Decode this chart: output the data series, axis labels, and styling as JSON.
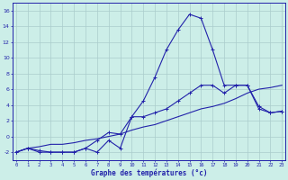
{
  "background_color": "#cceee8",
  "grid_color": "#aacccc",
  "line_color": "#2222aa",
  "x_values": [
    0,
    1,
    2,
    3,
    4,
    5,
    6,
    7,
    8,
    9,
    10,
    11,
    12,
    13,
    14,
    15,
    16,
    17,
    18,
    19,
    20,
    21,
    22,
    23
  ],
  "line_peak": [
    -2,
    -1.5,
    -2,
    -2,
    -2,
    -2,
    -1.5,
    -2,
    -0.5,
    -1.5,
    2.5,
    4.5,
    7.5,
    11.0,
    13.5,
    15.5,
    15.0,
    11.0,
    6.5,
    6.5,
    6.5,
    3.8,
    3.0,
    3.2
  ],
  "line_mid": [
    -2,
    -1.5,
    -1.8,
    -2,
    -2,
    -2,
    -1.5,
    -0.5,
    0.5,
    0.3,
    2.5,
    2.5,
    3.0,
    3.5,
    4.5,
    5.5,
    6.5,
    6.5,
    5.5,
    6.5,
    6.5,
    3.5,
    3.0,
    3.2
  ],
  "line_low": [
    -2,
    -1.5,
    -1.3,
    -1.0,
    -1.0,
    -0.8,
    -0.5,
    -0.3,
    0.0,
    0.3,
    0.8,
    1.2,
    1.5,
    2.0,
    2.5,
    3.0,
    3.5,
    3.8,
    4.2,
    4.8,
    5.5,
    6.0,
    6.2,
    6.5
  ],
  "ylim": [
    -3,
    17
  ],
  "yticks": [
    -2,
    0,
    2,
    4,
    6,
    8,
    10,
    12,
    14,
    16
  ],
  "xlabel": "Graphe des températures (°c)"
}
